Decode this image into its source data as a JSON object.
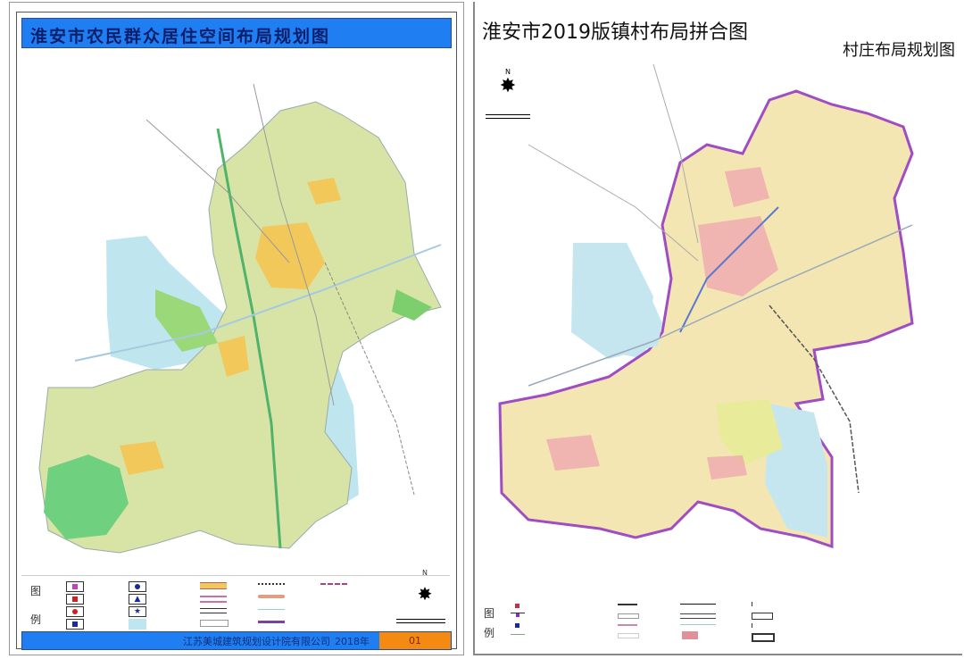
{
  "left_map": {
    "title": "淮安市农民群众居住空间布局规划图",
    "legend": {
      "heading_1": "图",
      "heading_2": "例"
    },
    "footer": {
      "organization": "江苏美城建筑规划设计院有限公司",
      "year": "2018年",
      "sheet_number": "01"
    },
    "north_label": "N",
    "colors": {
      "title_bar": "#1f7ff2",
      "sheet_box": "#f58a12",
      "land": "#d8e4a6",
      "water": "#bfe6ef",
      "urban": "#f2c85a",
      "forest": "#6fd080"
    }
  },
  "right_map": {
    "title": "淮安市2019版镇村布局拼合图",
    "subtitle": "村庄布局规划图",
    "north_label": "N",
    "legend": {
      "heading_1": "图",
      "heading_2": "例"
    },
    "colors": {
      "boundary": "#a04cc4",
      "land": "#f4e6b2",
      "water": "#c6e6ef",
      "urban": "#f0a0b0"
    }
  }
}
